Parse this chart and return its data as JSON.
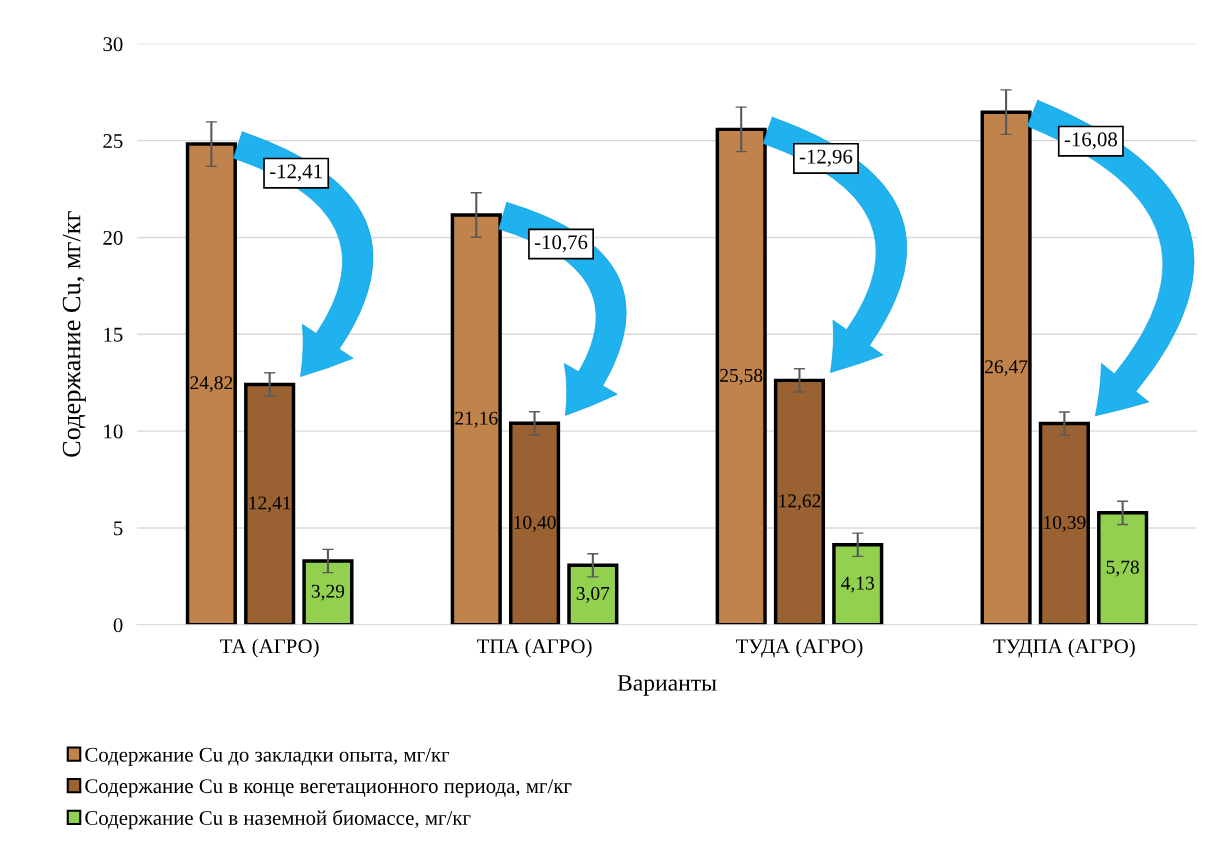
{
  "chart_data": {
    "type": "bar",
    "xlabel": "Варианты",
    "ylabel": "Содержание Cu, мг/кг",
    "categories": [
      "ТА (АГРО)",
      "ТПА (АГРО)",
      "ТУДА (АГРО)",
      "ТУДПА (АГРО)"
    ],
    "series": [
      {
        "name": "Содержание Cu до закладки опыта, мг/кг",
        "color": "#c0834b",
        "values": [
          24.82,
          21.16,
          25.58,
          26.47
        ],
        "value_labels": [
          "24,82",
          "21,16",
          "25,58",
          "26,47"
        ],
        "errors": [
          1.15,
          1.15,
          1.15,
          1.15
        ]
      },
      {
        "name": "Содержание Cu в конце вегетационного периода, мг/кг",
        "color": "#9a6233",
        "values": [
          12.41,
          10.4,
          12.62,
          10.39
        ],
        "value_labels": [
          "12,41",
          "10,40",
          "12,62",
          "10,39"
        ],
        "errors": [
          0.6,
          0.6,
          0.6,
          0.6
        ]
      },
      {
        "name": "Содержание Cu в наземной биомассе, мг/кг",
        "color": "#92d050",
        "values": [
          3.29,
          3.07,
          4.13,
          5.78
        ],
        "value_labels": [
          "3,29",
          "3,07",
          "4,13",
          "5,78"
        ],
        "errors": [
          0.6,
          0.6,
          0.6,
          0.6
        ]
      }
    ],
    "annotations": [
      "-12,41",
      "-10,76",
      "-12,96",
      "-16,08"
    ],
    "ylim": [
      0,
      30
    ],
    "yticks": [
      0,
      5,
      10,
      15,
      20,
      25,
      30
    ],
    "grid": "y",
    "legend": "bottom left"
  }
}
